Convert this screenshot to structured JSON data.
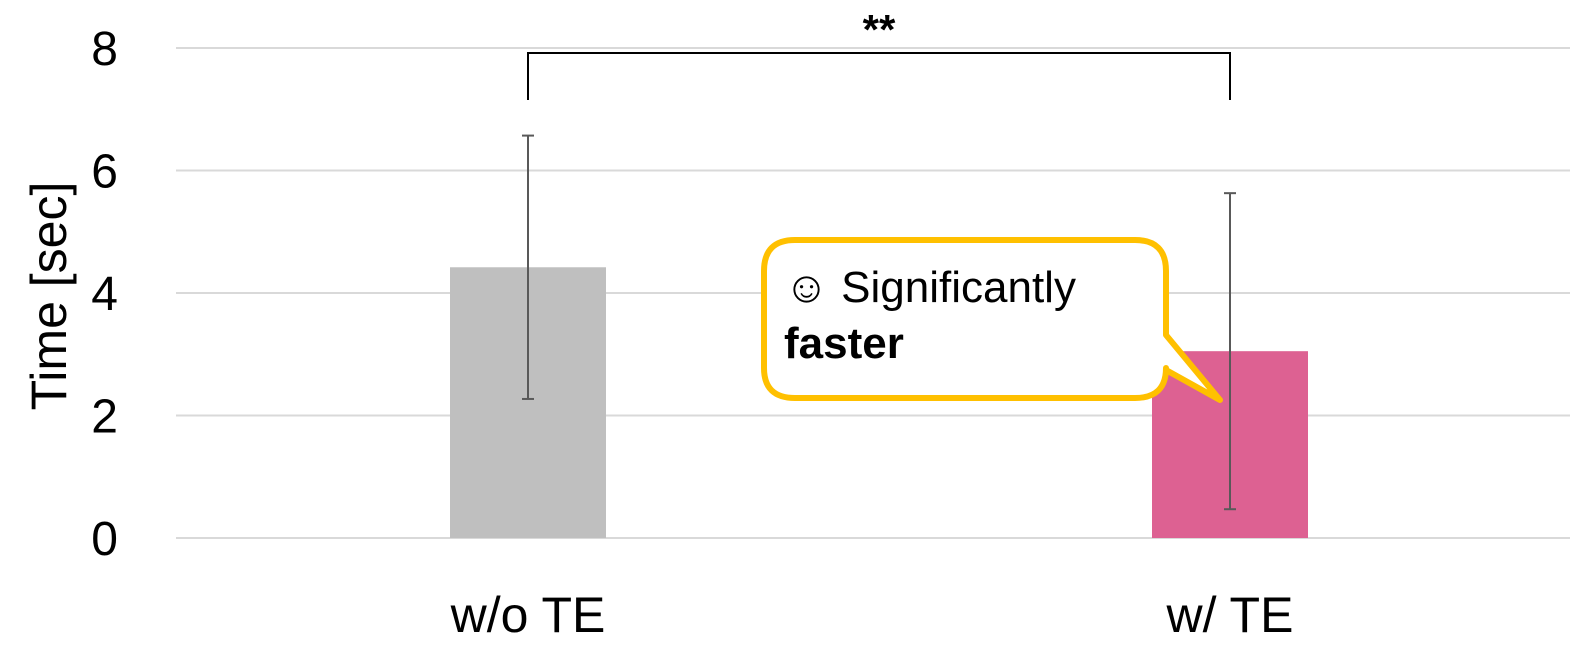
{
  "chart_data": {
    "type": "bar",
    "categories": [
      "w/o TE",
      "w/ TE"
    ],
    "values": [
      4.42,
      3.05
    ],
    "error": [
      2.15,
      2.58
    ],
    "ylabel": "Time [sec]",
    "xlabel": "",
    "ylim": [
      0,
      8
    ],
    "yticks": [
      0,
      2,
      4,
      6,
      8
    ],
    "grid": true,
    "colors": [
      "#bfbfbf",
      "#dd6192"
    ],
    "significance": {
      "label": "**",
      "between": [
        "w/o TE",
        "w/ TE"
      ]
    },
    "annotation": {
      "icon": "smiley-icon",
      "icon_glyph": "☺",
      "text": "Significantly",
      "bold_text": "faster",
      "border_color": "#ffc000"
    }
  }
}
